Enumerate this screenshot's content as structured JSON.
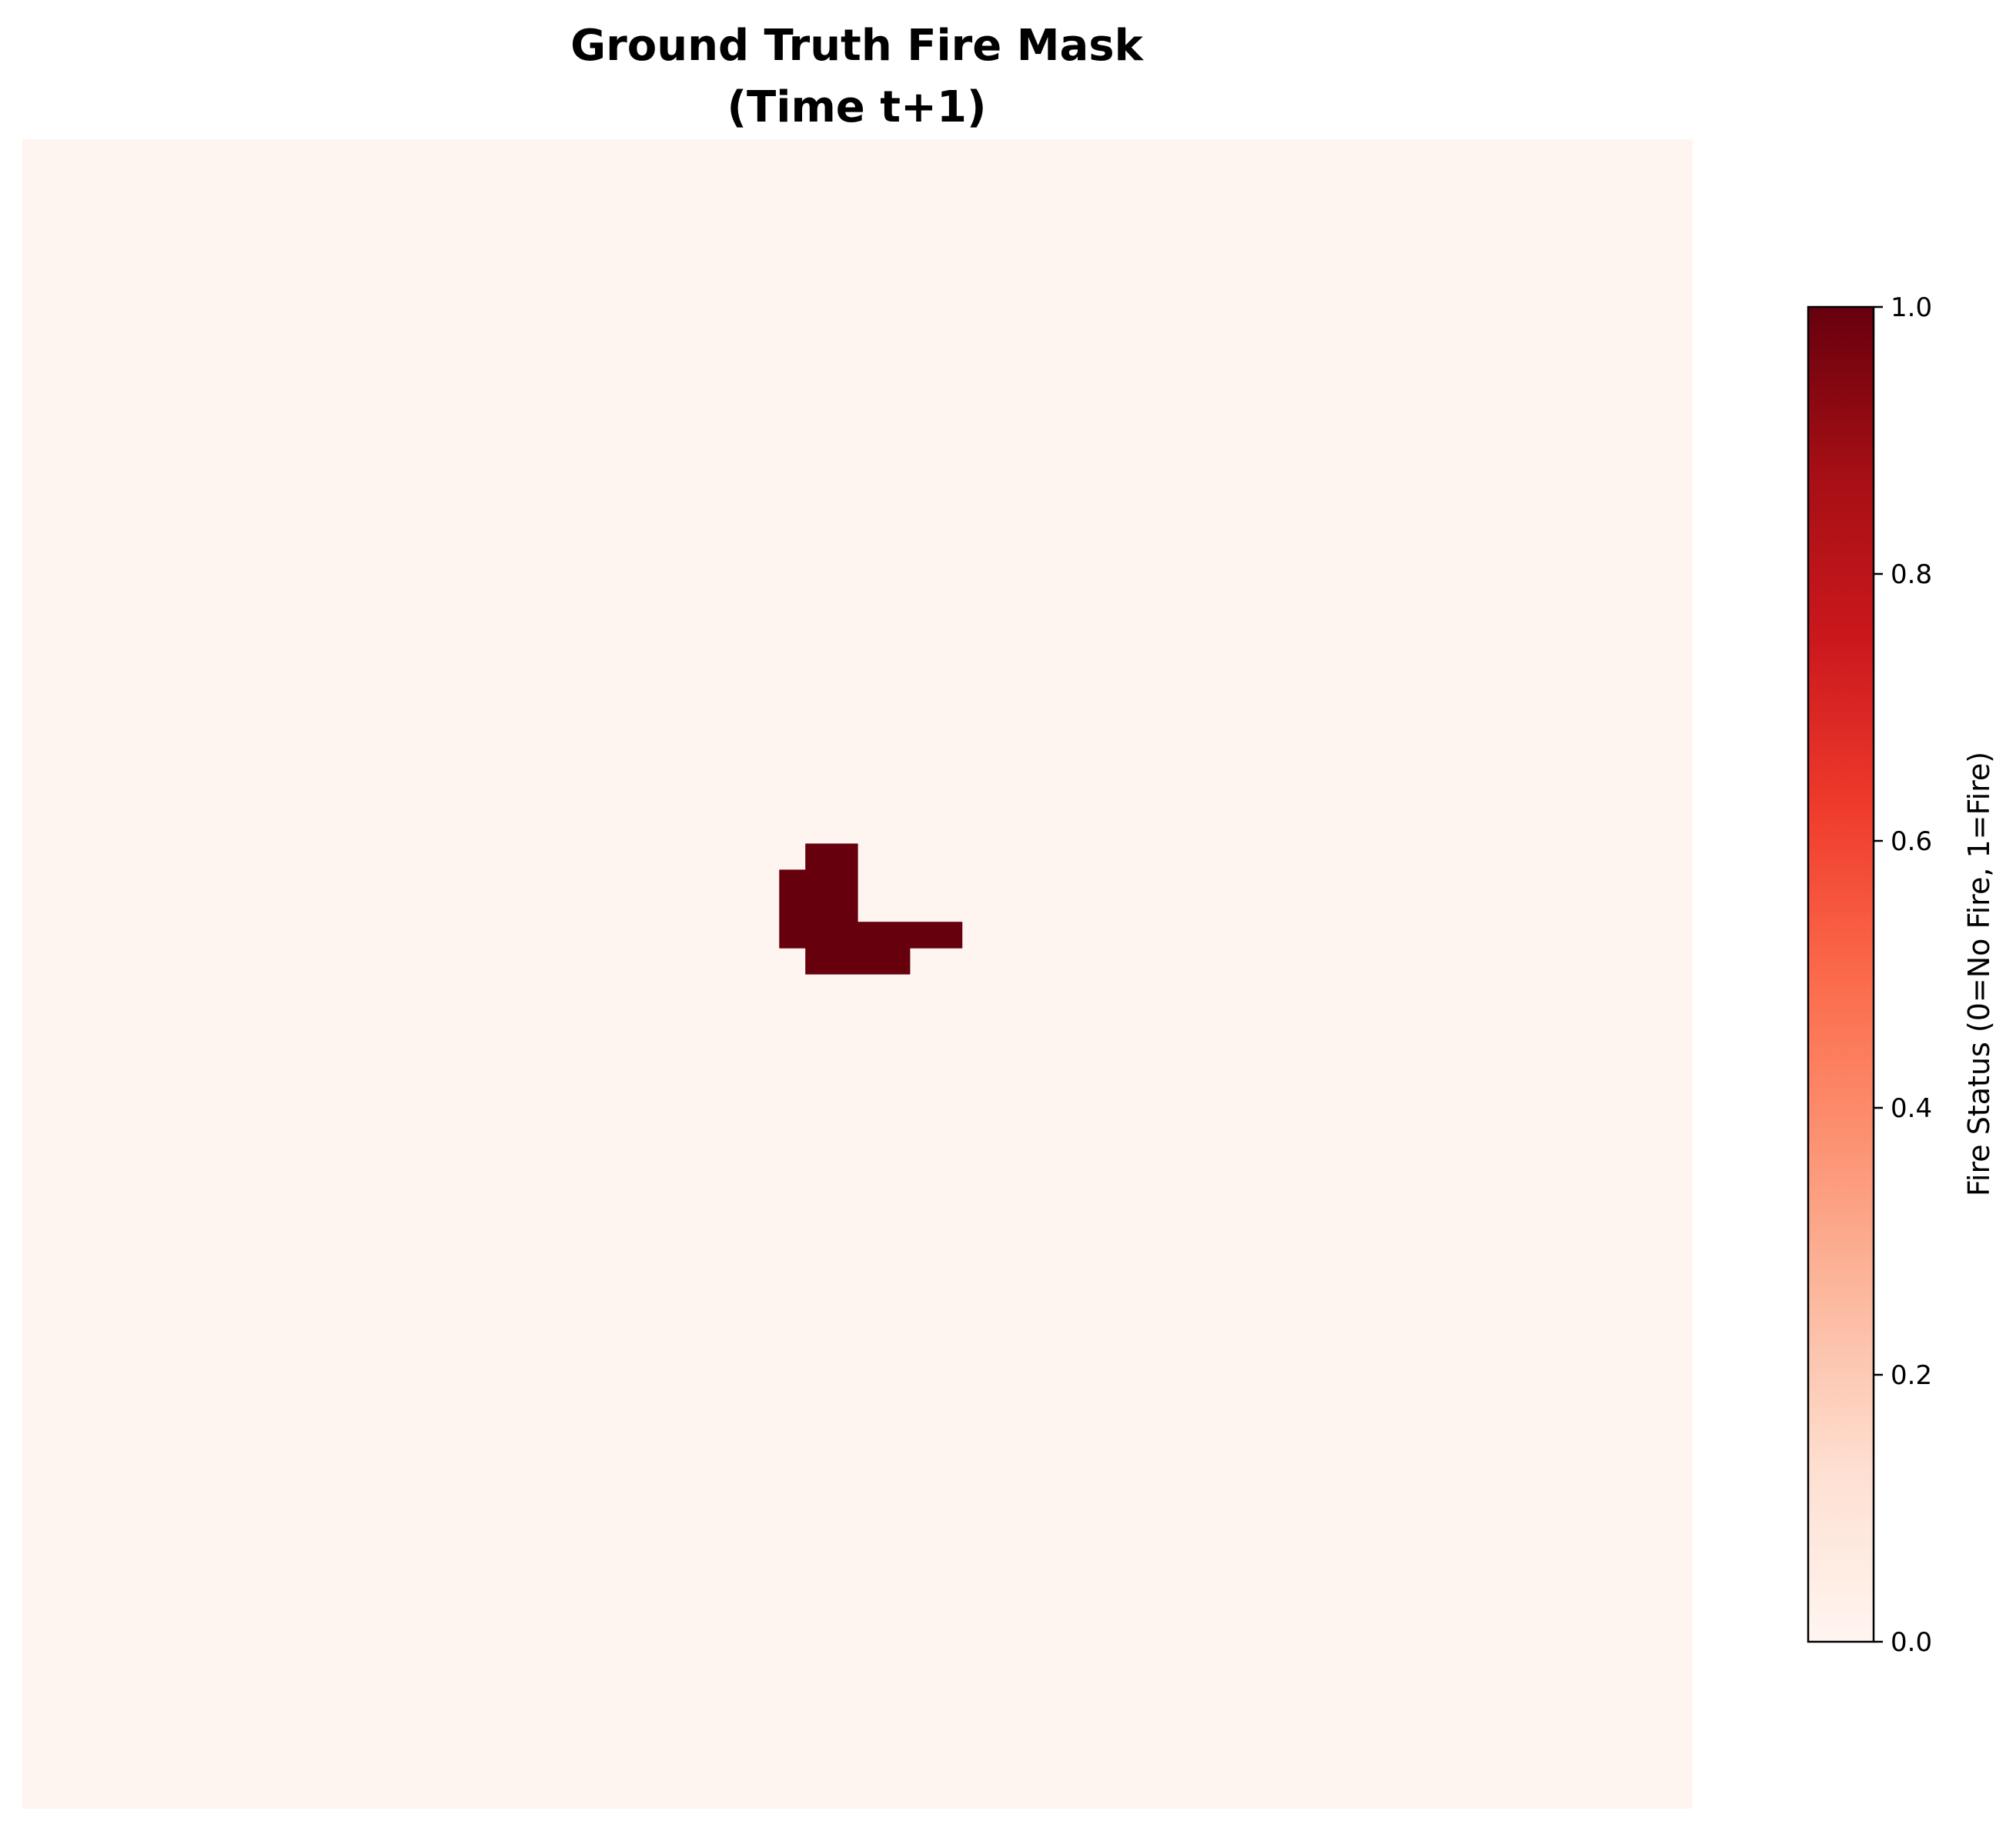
{
  "chart_data": {
    "type": "heatmap",
    "title_line1": "Ground Truth Fire Mask",
    "title_line2": "(Time t+1)",
    "xlabel": "",
    "ylabel": "",
    "grid": false,
    "axes_visible": false,
    "colormap": "Reds",
    "value_range": [
      0,
      1
    ],
    "grid_size": [
      64,
      64
    ],
    "background_value": 0,
    "fire_cells": [
      {
        "row": 27,
        "col": 30
      },
      {
        "row": 27,
        "col": 31
      },
      {
        "row": 28,
        "col": 29
      },
      {
        "row": 28,
        "col": 30
      },
      {
        "row": 28,
        "col": 31
      },
      {
        "row": 29,
        "col": 29
      },
      {
        "row": 29,
        "col": 30
      },
      {
        "row": 29,
        "col": 31
      },
      {
        "row": 30,
        "col": 29
      },
      {
        "row": 30,
        "col": 30
      },
      {
        "row": 30,
        "col": 31
      },
      {
        "row": 30,
        "col": 32
      },
      {
        "row": 30,
        "col": 33
      },
      {
        "row": 30,
        "col": 34
      },
      {
        "row": 30,
        "col": 35
      },
      {
        "row": 31,
        "col": 30
      },
      {
        "row": 31,
        "col": 31
      },
      {
        "row": 31,
        "col": 32
      },
      {
        "row": 31,
        "col": 33
      }
    ],
    "colorbar": {
      "label": "Fire Status (0=No Fire, 1=Fire)",
      "ticks": [
        0.0,
        0.2,
        0.4,
        0.6,
        0.8,
        1.0
      ],
      "tick_labels": [
        "0.0",
        "0.2",
        "0.4",
        "0.6",
        "0.8",
        "1.0"
      ],
      "orientation": "vertical",
      "placement": "right"
    },
    "colors": {
      "low": "#fff5f0",
      "high": "#67000d",
      "stops": [
        "#fff5f0",
        "#fee0d2",
        "#fcbba1",
        "#fc9272",
        "#fb6a4a",
        "#ef3b2c",
        "#cb181d",
        "#a50f15",
        "#67000d"
      ]
    }
  }
}
